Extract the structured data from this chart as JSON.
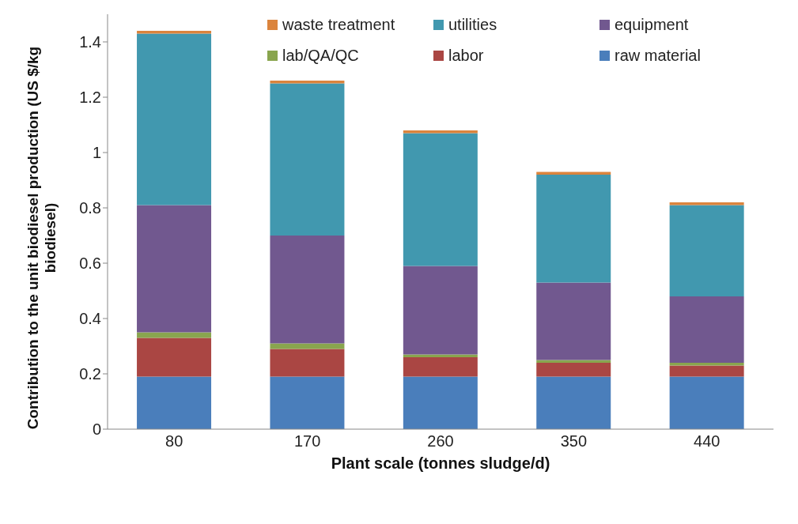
{
  "chart_data": {
    "type": "bar",
    "stacked": true,
    "xlabel": "Plant scale (tonnes sludge/d)",
    "ylabel": "Contribution to the unit biodiesel production (US $/kg biodiesel)",
    "categories": [
      "80",
      "170",
      "260",
      "350",
      "440"
    ],
    "series": [
      {
        "name": "raw material",
        "color": "#4a7ebb",
        "values": [
          0.19,
          0.19,
          0.19,
          0.19,
          0.19
        ]
      },
      {
        "name": "labor",
        "color": "#aa4643",
        "values": [
          0.14,
          0.1,
          0.07,
          0.05,
          0.04
        ]
      },
      {
        "name": "lab/QA/QC",
        "color": "#89a54e",
        "values": [
          0.02,
          0.02,
          0.01,
          0.01,
          0.01
        ]
      },
      {
        "name": "equipment",
        "color": "#71588f",
        "values": [
          0.46,
          0.39,
          0.32,
          0.28,
          0.24
        ]
      },
      {
        "name": "utilities",
        "color": "#4198af",
        "values": [
          0.62,
          0.55,
          0.48,
          0.39,
          0.33
        ]
      },
      {
        "name": "waste treatment",
        "color": "#db843d",
        "values": [
          0.01,
          0.01,
          0.01,
          0.01,
          0.01
        ]
      }
    ],
    "ylim": [
      0,
      1.5
    ],
    "yticks": [
      0,
      0.2,
      0.4,
      0.6,
      0.8,
      1,
      1.2,
      1.4
    ],
    "legend": "top"
  }
}
